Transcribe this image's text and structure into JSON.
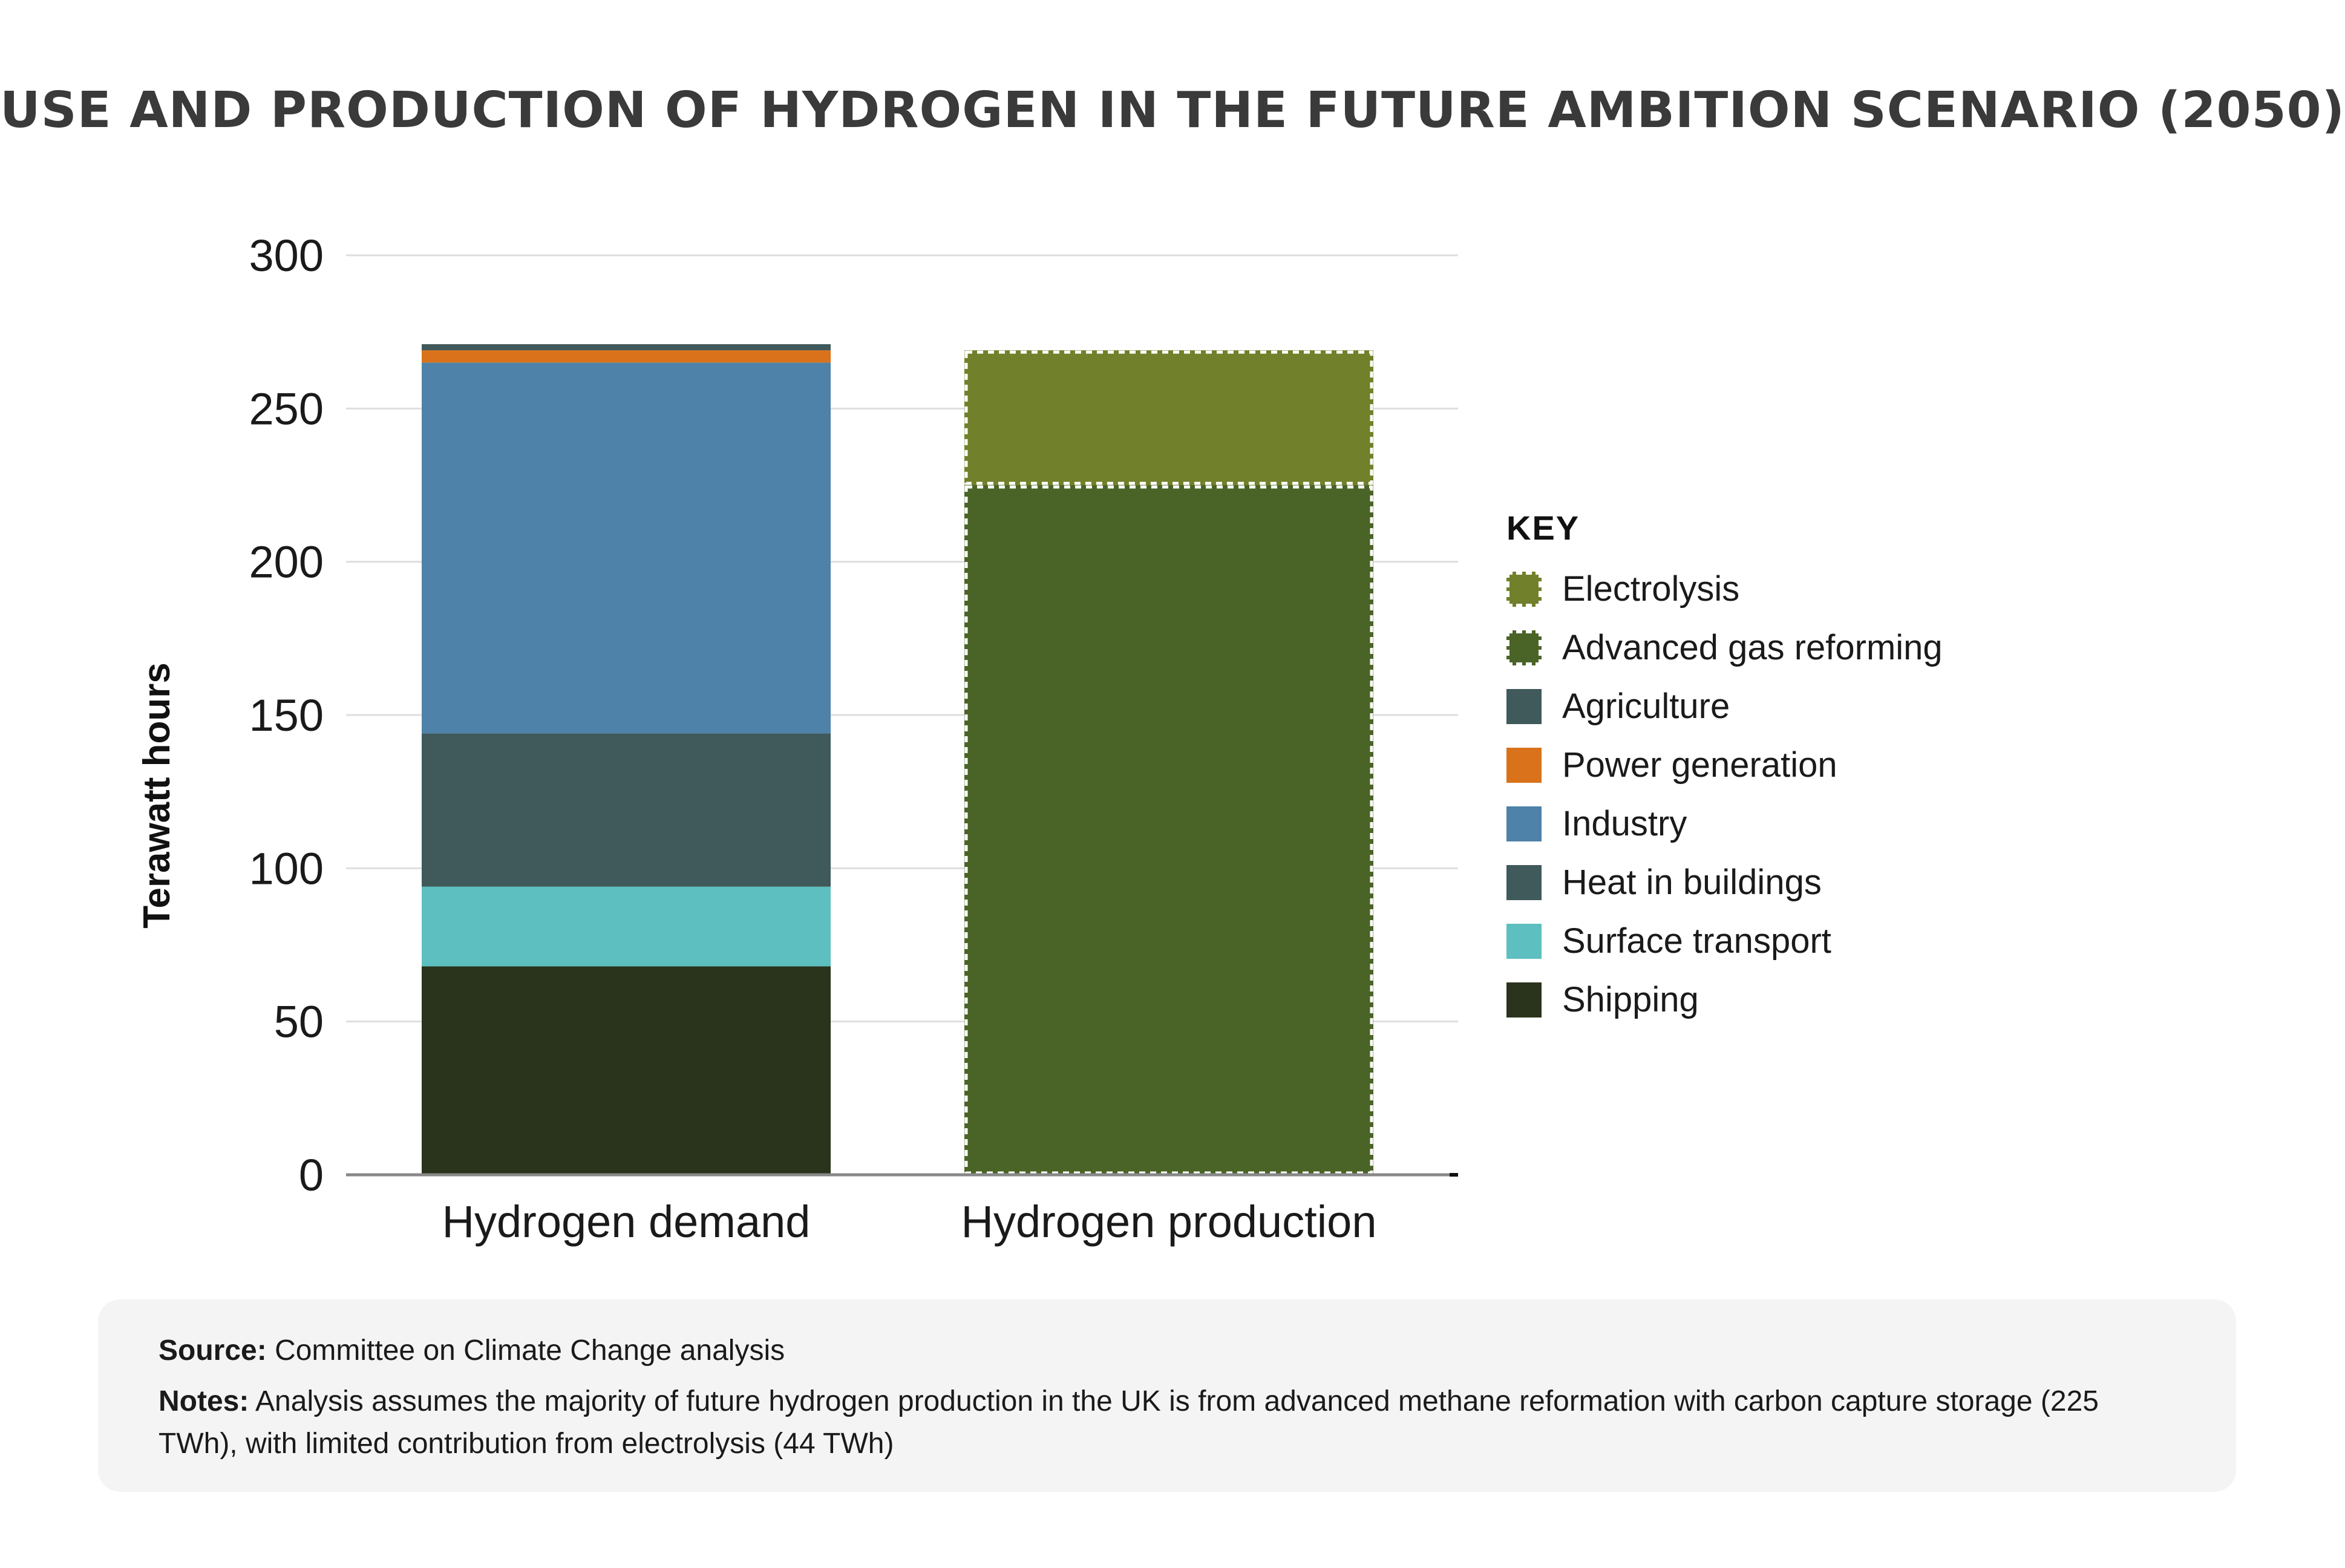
{
  "title": "USE AND PRODUCTION OF HYDROGEN IN THE FUTURE AMBITION SCENARIO (2050)",
  "chart_data": {
    "type": "bar",
    "stacked": true,
    "categories": [
      "Hydrogen demand",
      "Hydrogen production"
    ],
    "ylabel": "Terawatt hours",
    "ylim": [
      0,
      300
    ],
    "yticks": [
      0,
      50,
      100,
      150,
      200,
      250,
      300
    ],
    "grid": true,
    "legend_title": "KEY",
    "legend_position": "right",
    "series": [
      {
        "name": "Shipping",
        "color": "#2a331c",
        "values": [
          68,
          0
        ],
        "style": "solid"
      },
      {
        "name": "Surface transport",
        "color": "#5dbfbf",
        "values": [
          26,
          0
        ],
        "style": "solid"
      },
      {
        "name": "Heat in buildings",
        "color": "#40595b",
        "values": [
          50,
          0
        ],
        "style": "solid"
      },
      {
        "name": "Industry",
        "color": "#4e82a8",
        "values": [
          121,
          0
        ],
        "style": "solid"
      },
      {
        "name": "Power generation",
        "color": "#d9721b",
        "values": [
          4,
          0
        ],
        "style": "solid"
      },
      {
        "name": "Agriculture",
        "color": "#40595b",
        "values": [
          2,
          0
        ],
        "style": "solid"
      },
      {
        "name": "Advanced gas reforming",
        "color": "#4a6427",
        "values": [
          0,
          225
        ],
        "style": "dashed"
      },
      {
        "name": "Electrolysis",
        "color": "#71802a",
        "values": [
          0,
          44
        ],
        "style": "dashed"
      }
    ],
    "legend_order": [
      "Electrolysis",
      "Advanced gas reforming",
      "Agriculture",
      "Power generation",
      "Industry",
      "Heat in buildings",
      "Surface transport",
      "Shipping"
    ]
  },
  "source": {
    "label": "Source:",
    "text": "Committee on Climate Change analysis"
  },
  "notes": {
    "label": "Notes:",
    "text": "Analysis assumes the majority of future hydrogen production in the UK is from advanced methane reformation with carbon capture storage (225 TWh), with limited contribution from electrolysis (44 TWh)"
  }
}
